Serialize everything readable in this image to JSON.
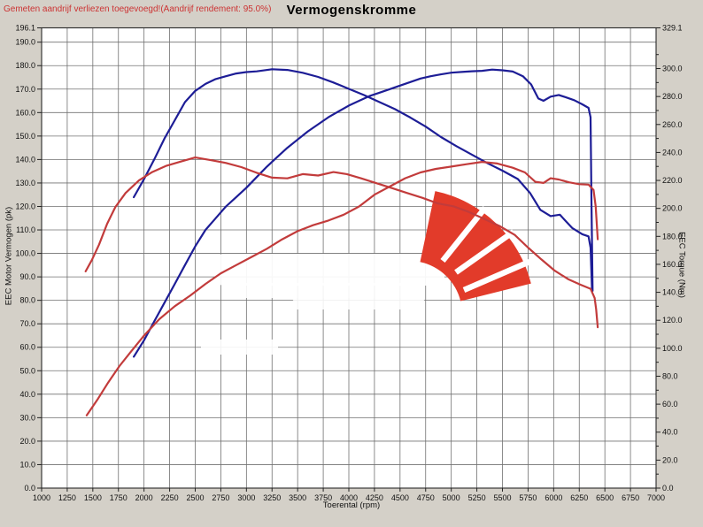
{
  "header": {
    "note": "Gemeten aandrijf verliezen toegevoegd!(Aandrijf rendement: 95.0%)",
    "title": "Vermogenskromme"
  },
  "colors": {
    "blue_curve": "#1d1d96",
    "red_curve": "#c23b3b",
    "note_red": "#cc3333",
    "logo_red": "#e23b2a",
    "grid": "#707070",
    "plot_bg": "#ffffff",
    "page_bg": "#d4d0c8"
  },
  "chart_data": {
    "type": "line",
    "title": "Vermogenskromme",
    "xlabel": "Toerental (rpm)",
    "ylabel_left": "EEC Motor Vermogen (pk)",
    "ylabel_right": "EEC Torque (Nm)",
    "x_range": [
      1000,
      7000
    ],
    "x_tick_step": 250,
    "y_left_range": [
      0,
      196.1
    ],
    "y_left_tick_step": 10,
    "y_left_top_label": 196.1,
    "y_right_range": [
      0,
      329.1
    ],
    "y_right_tick_step": 10,
    "y_right_label_step": 20,
    "y_right_top_label": 329.1,
    "grid": true,
    "legend": "none",
    "series": [
      {
        "name": "power-blue-pk",
        "axis": "left",
        "color": "#1d1d96",
        "points": [
          [
            1900,
            56
          ],
          [
            2000,
            63
          ],
          [
            2100,
            71
          ],
          [
            2200,
            79
          ],
          [
            2300,
            87
          ],
          [
            2400,
            95
          ],
          [
            2500,
            103
          ],
          [
            2600,
            110
          ],
          [
            2700,
            115
          ],
          [
            2800,
            120
          ],
          [
            2900,
            124
          ],
          [
            3000,
            128
          ],
          [
            3100,
            132.5
          ],
          [
            3200,
            137
          ],
          [
            3300,
            141
          ],
          [
            3400,
            145
          ],
          [
            3500,
            148.5
          ],
          [
            3600,
            152
          ],
          [
            3700,
            155
          ],
          [
            3800,
            158
          ],
          [
            3900,
            160.5
          ],
          [
            4000,
            163
          ],
          [
            4100,
            165
          ],
          [
            4200,
            167
          ],
          [
            4300,
            168.5
          ],
          [
            4400,
            170
          ],
          [
            4500,
            171.5
          ],
          [
            4600,
            173
          ],
          [
            4700,
            174.5
          ],
          [
            4800,
            175.5
          ],
          [
            4900,
            176.3
          ],
          [
            5000,
            177
          ],
          [
            5100,
            177.3
          ],
          [
            5200,
            177.6
          ],
          [
            5300,
            177.8
          ],
          [
            5400,
            178.3
          ],
          [
            5500,
            178
          ],
          [
            5600,
            177.5
          ],
          [
            5700,
            175.5
          ],
          [
            5780,
            172
          ],
          [
            5850,
            166
          ],
          [
            5900,
            165
          ],
          [
            5970,
            166.8
          ],
          [
            6050,
            167.5
          ],
          [
            6120,
            166.5
          ],
          [
            6200,
            165.3
          ],
          [
            6280,
            163.5
          ],
          [
            6340,
            162
          ],
          [
            6360,
            158
          ],
          [
            6370,
            120
          ],
          [
            6380,
            84
          ]
        ]
      },
      {
        "name": "torque-blue-nm",
        "axis": "right",
        "color": "#1d1d96",
        "points": [
          [
            1900,
            208
          ],
          [
            2000,
            221
          ],
          [
            2100,
            235
          ],
          [
            2200,
            250
          ],
          [
            2300,
            263
          ],
          [
            2400,
            276
          ],
          [
            2500,
            284
          ],
          [
            2600,
            289
          ],
          [
            2700,
            292.5
          ],
          [
            2800,
            294.5
          ],
          [
            2900,
            296.5
          ],
          [
            3000,
            297.5
          ],
          [
            3100,
            298
          ],
          [
            3250,
            299.5
          ],
          [
            3400,
            299
          ],
          [
            3550,
            297
          ],
          [
            3700,
            294
          ],
          [
            3850,
            290
          ],
          [
            4000,
            285.5
          ],
          [
            4150,
            281
          ],
          [
            4300,
            276
          ],
          [
            4450,
            271
          ],
          [
            4600,
            265
          ],
          [
            4750,
            258.5
          ],
          [
            4900,
            251
          ],
          [
            5050,
            244.5
          ],
          [
            5200,
            238.5
          ],
          [
            5350,
            232.5
          ],
          [
            5500,
            227
          ],
          [
            5650,
            221
          ],
          [
            5770,
            211
          ],
          [
            5870,
            199
          ],
          [
            5970,
            194.5
          ],
          [
            6060,
            195.5
          ],
          [
            6180,
            186
          ],
          [
            6280,
            181.5
          ],
          [
            6340,
            180
          ],
          [
            6360,
            172
          ],
          [
            6375,
            141
          ]
        ]
      },
      {
        "name": "power-red-pk",
        "axis": "left",
        "color": "#c23b3b",
        "points": [
          [
            1440,
            31
          ],
          [
            1550,
            38
          ],
          [
            1650,
            45
          ],
          [
            1760,
            52
          ],
          [
            1870,
            58
          ],
          [
            2000,
            65
          ],
          [
            2150,
            72
          ],
          [
            2300,
            77.5
          ],
          [
            2450,
            82
          ],
          [
            2600,
            87
          ],
          [
            2750,
            91.5
          ],
          [
            2900,
            95
          ],
          [
            3050,
            98.5
          ],
          [
            3200,
            102
          ],
          [
            3350,
            106
          ],
          [
            3500,
            109.5
          ],
          [
            3650,
            112
          ],
          [
            3800,
            114
          ],
          [
            3950,
            116.5
          ],
          [
            4100,
            120
          ],
          [
            4250,
            125
          ],
          [
            4400,
            128.5
          ],
          [
            4550,
            132
          ],
          [
            4700,
            134.5
          ],
          [
            4850,
            136
          ],
          [
            5000,
            137
          ],
          [
            5150,
            138
          ],
          [
            5300,
            139
          ],
          [
            5450,
            138.3
          ],
          [
            5600,
            136.5
          ],
          [
            5720,
            134.5
          ],
          [
            5820,
            130.5
          ],
          [
            5900,
            130
          ],
          [
            5970,
            132
          ],
          [
            6050,
            131.5
          ],
          [
            6150,
            130.3
          ],
          [
            6250,
            129.5
          ],
          [
            6340,
            129.3
          ],
          [
            6390,
            127
          ],
          [
            6410,
            120
          ],
          [
            6430,
            106
          ]
        ]
      },
      {
        "name": "torque-red-nm",
        "axis": "right",
        "color": "#c23b3b",
        "points": [
          [
            1430,
            155
          ],
          [
            1490,
            163
          ],
          [
            1560,
            174
          ],
          [
            1640,
            189
          ],
          [
            1720,
            201
          ],
          [
            1820,
            211
          ],
          [
            1950,
            220
          ],
          [
            2080,
            226
          ],
          [
            2220,
            230.5
          ],
          [
            2360,
            233.5
          ],
          [
            2500,
            236.4
          ],
          [
            2650,
            234.5
          ],
          [
            2800,
            232.5
          ],
          [
            2950,
            229.5
          ],
          [
            3100,
            225.5
          ],
          [
            3250,
            222
          ],
          [
            3400,
            221.5
          ],
          [
            3550,
            224.5
          ],
          [
            3700,
            223.5
          ],
          [
            3850,
            226
          ],
          [
            3980,
            224.5
          ],
          [
            4120,
            221.5
          ],
          [
            4270,
            218
          ],
          [
            4420,
            214.5
          ],
          [
            4570,
            211
          ],
          [
            4720,
            207.5
          ],
          [
            4870,
            203.5
          ],
          [
            5020,
            201.5
          ],
          [
            5170,
            197.5
          ],
          [
            5320,
            192.5
          ],
          [
            5470,
            187.5
          ],
          [
            5620,
            181
          ],
          [
            5750,
            172
          ],
          [
            5880,
            163.5
          ],
          [
            6010,
            155.5
          ],
          [
            6140,
            149.5
          ],
          [
            6260,
            145.5
          ],
          [
            6360,
            142.5
          ],
          [
            6400,
            136
          ],
          [
            6415,
            128
          ],
          [
            6430,
            115
          ]
        ]
      }
    ]
  }
}
